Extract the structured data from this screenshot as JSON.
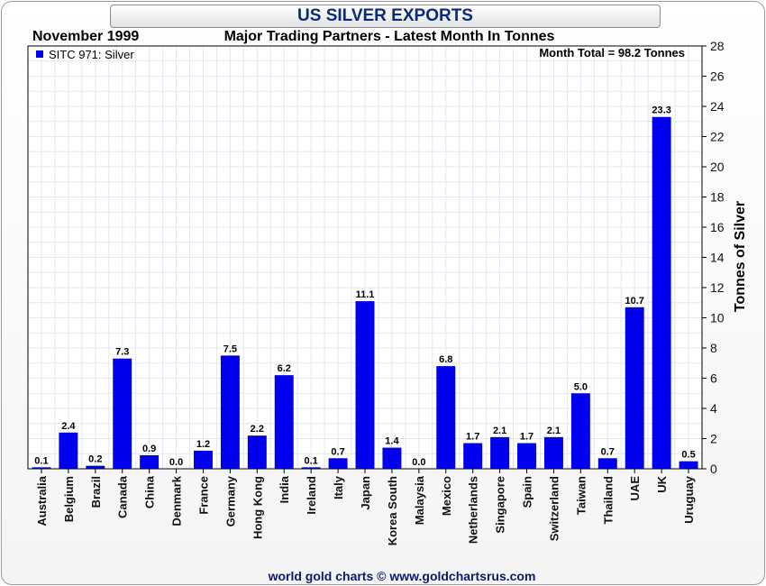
{
  "header": {
    "title": "US SILVER EXPORTS",
    "date": "November 1999",
    "subtitle": "Major Trading Partners - Latest Month In Tonnes"
  },
  "footer": {
    "credit": "world gold charts © www.goldchartsrus.com"
  },
  "colors": {
    "bar": "#0000ee",
    "title": "#0a2a7a",
    "footer": "#0a1a70",
    "grid": "#e2e8f0"
  },
  "chart_data": {
    "type": "bar",
    "title": "US SILVER EXPORTS",
    "subtitle": "Major Trading Partners - Latest Month In Tonnes",
    "xlabel": "",
    "ylabel": "Tonnes of Silver",
    "ylim": [
      0,
      28
    ],
    "yticks": [
      0,
      2,
      4,
      6,
      8,
      10,
      12,
      14,
      16,
      18,
      20,
      22,
      24,
      26,
      28
    ],
    "grid": true,
    "legend": {
      "position": "top-left",
      "entries": [
        "SITC 971: Silver"
      ]
    },
    "annotation": "Month Total = 98.2 Tonnes",
    "categories": [
      "Australia",
      "Belgium",
      "Brazil",
      "Canada",
      "China",
      "Denmark",
      "France",
      "Germany",
      "Hong Kong",
      "India",
      "Ireland",
      "Italy",
      "Japan",
      "Korea South",
      "Malaysia",
      "Mexico",
      "Netherlands",
      "Singapore",
      "Spain",
      "Switzerland",
      "Taiwan",
      "Thailand",
      "UAE",
      "UK",
      "Uruguay"
    ],
    "series": [
      {
        "name": "SITC 971: Silver",
        "values": [
          0.1,
          2.4,
          0.2,
          7.3,
          0.9,
          0.0,
          1.2,
          7.5,
          2.2,
          6.2,
          0.1,
          0.7,
          11.1,
          1.4,
          0.0,
          6.8,
          1.7,
          2.1,
          1.7,
          2.1,
          5.0,
          0.7,
          10.7,
          23.3,
          0.5
        ],
        "labels": [
          "0.1",
          "2.4",
          "0.2",
          "7.3",
          "0.9",
          "0.0",
          "1.2",
          "7.5",
          "2.2",
          "6.2",
          "0.1",
          "0.7",
          "11.1",
          "1.4",
          "0.0",
          "6.8",
          "1.7",
          "2.1",
          "1.7",
          "2.1",
          "5.0",
          "0.7",
          "10.7",
          "23.3",
          "0.5"
        ]
      }
    ]
  }
}
